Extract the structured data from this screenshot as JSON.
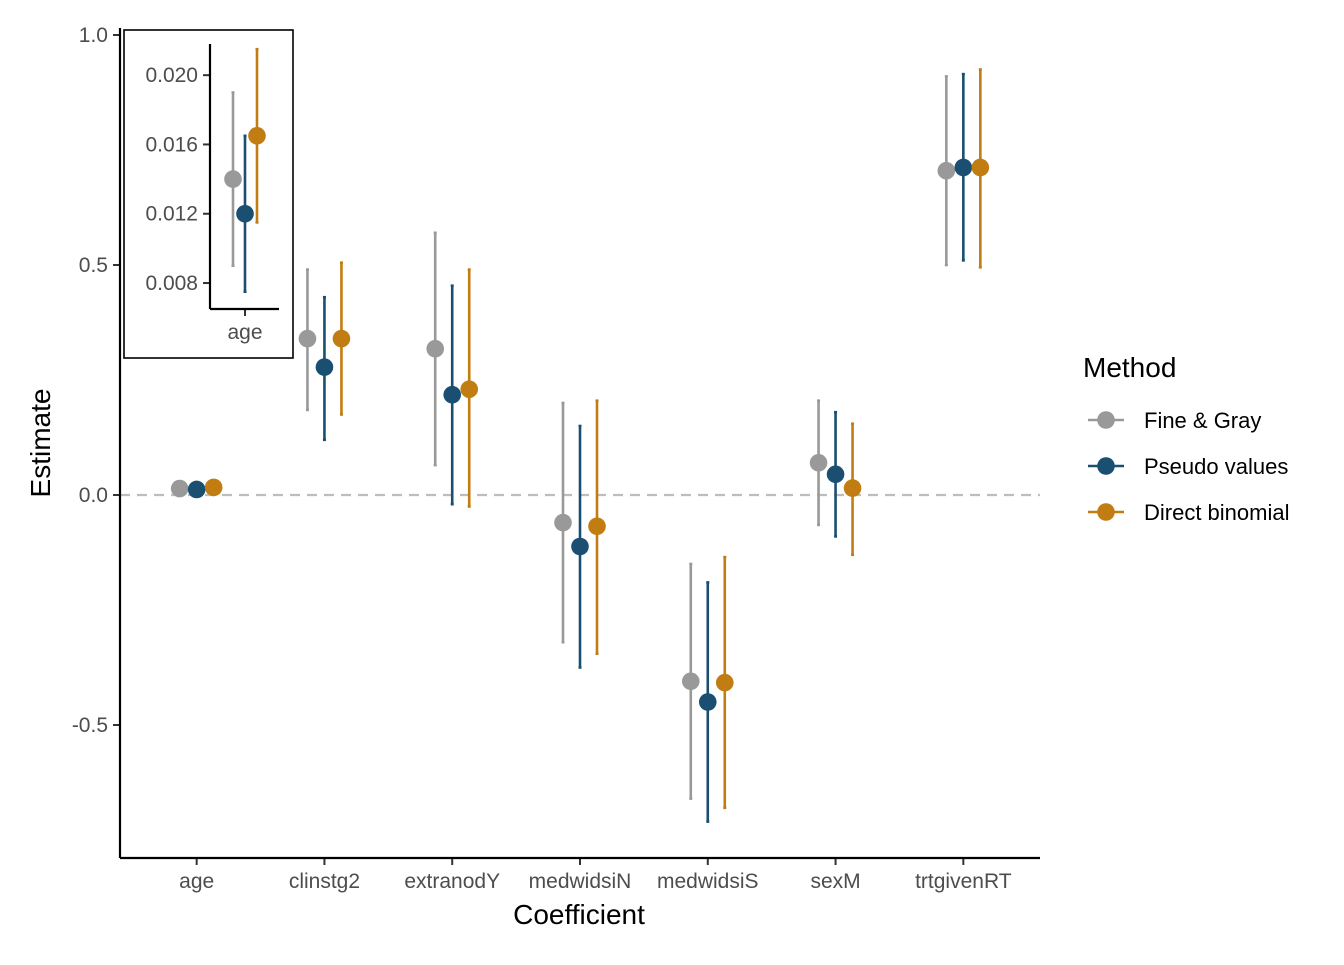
{
  "chart_data": {
    "type": "scatter",
    "subtype": "point-range with error bars, dodged by method",
    "xlabel": "Coefficient",
    "ylabel": "Estimate",
    "categories": [
      "age",
      "clinstg2",
      "extranodY",
      "medwidsiN",
      "medwidsiS",
      "sexM",
      "trtgivenRT"
    ],
    "ylim": [
      -0.785,
      1.0
    ],
    "yticks": [
      -0.5,
      0.0,
      0.5,
      1.0
    ],
    "ytick_labels": [
      "-0.5",
      "0.0",
      "0.5",
      "1.0"
    ],
    "reference_line": {
      "y": 0,
      "style": "dashed",
      "color": "#bdbdbd"
    },
    "legend": {
      "title": "Method",
      "position": "right"
    },
    "series": [
      {
        "name": "Fine & Gray",
        "color": "#999999",
        "estimates": [
          0.014,
          0.34,
          0.318,
          -0.06,
          -0.405,
          0.07,
          0.705
        ],
        "lower": [
          0.009,
          0.185,
          0.065,
          -0.32,
          -0.66,
          -0.065,
          0.5
        ],
        "upper": [
          0.019,
          0.49,
          0.57,
          0.2,
          -0.15,
          0.205,
          0.91
        ]
      },
      {
        "name": "Pseudo values",
        "color": "#1b4f72",
        "estimates": [
          0.012,
          0.278,
          0.218,
          -0.112,
          -0.45,
          0.045,
          0.712
        ],
        "lower": [
          0.0075,
          0.12,
          -0.02,
          -0.375,
          -0.71,
          -0.09,
          0.51
        ],
        "upper": [
          0.0165,
          0.43,
          0.455,
          0.15,
          -0.19,
          0.18,
          0.915
        ]
      },
      {
        "name": "Direct binomial",
        "color": "#c17d11",
        "estimates": [
          0.0165,
          0.34,
          0.23,
          -0.068,
          -0.408,
          0.015,
          0.712
        ],
        "lower": [
          0.0115,
          0.175,
          -0.025,
          -0.345,
          -0.68,
          -0.13,
          0.495
        ],
        "upper": [
          0.0215,
          0.505,
          0.49,
          0.205,
          -0.135,
          0.155,
          0.925
        ]
      }
    ],
    "inset": {
      "category": "age",
      "ylim": [
        0.0065,
        0.0218
      ],
      "yticks": [
        0.008,
        0.012,
        0.016,
        0.02
      ],
      "ytick_labels": [
        "0.008",
        "0.012",
        "0.016",
        "0.020"
      ]
    }
  }
}
